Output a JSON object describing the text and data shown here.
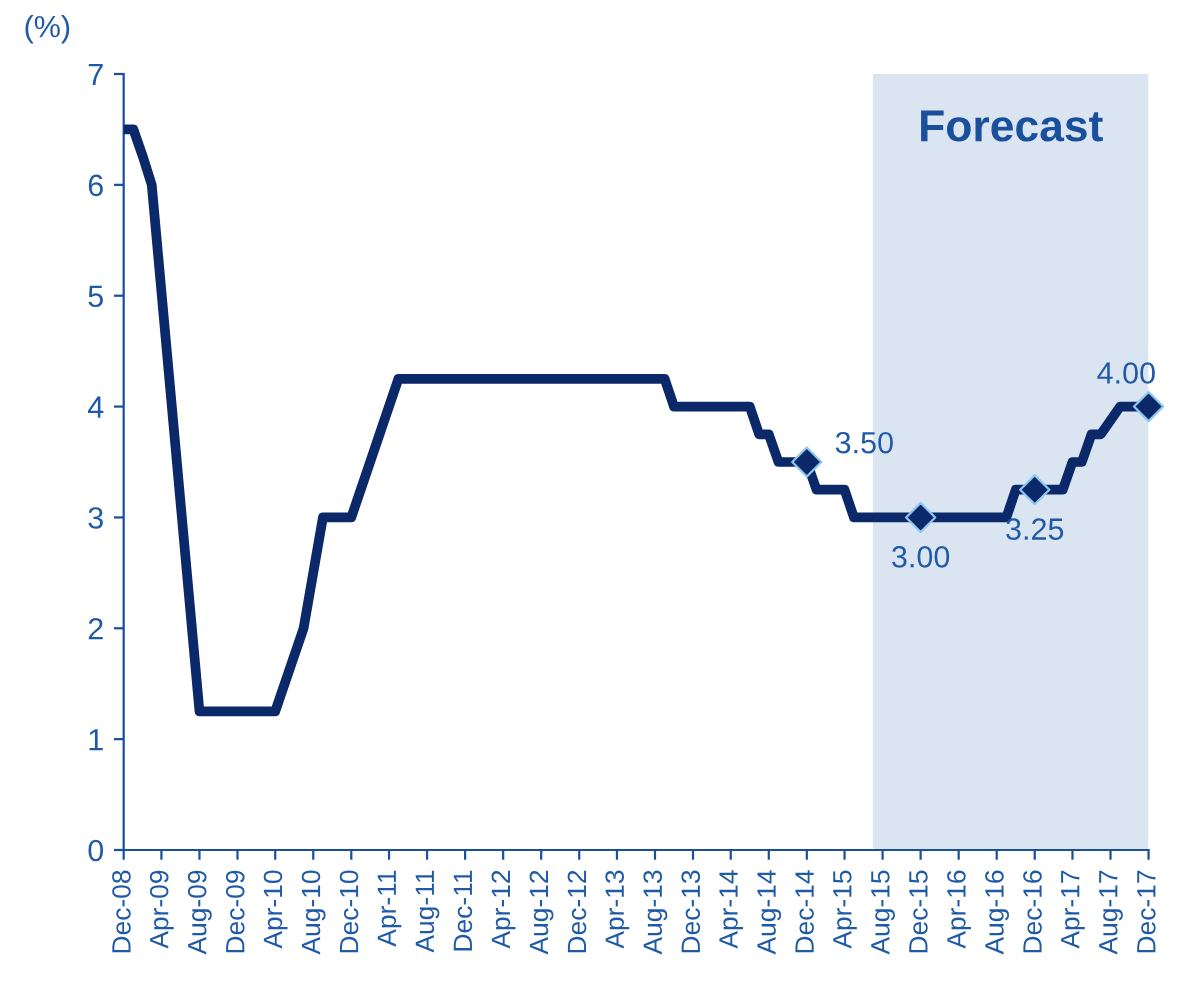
{
  "chart_data": {
    "type": "line",
    "ylabel": "(%)",
    "series": [
      {
        "color": "#0b2869",
        "x": [
          "2008-12",
          "2009-01",
          "2009-02",
          "2009-03",
          "2009-08",
          "2010-04",
          "2010-07",
          "2010-09",
          "2010-12",
          "2011-05",
          "2013-09",
          "2013-10",
          "2014-06",
          "2014-07",
          "2014-08",
          "2014-09",
          "2014-12",
          "2015-01",
          "2015-04",
          "2015-05",
          "2015-12",
          "2016-09",
          "2016-10",
          "2016-12",
          "2017-03",
          "2017-04",
          "2017-05",
          "2017-06",
          "2017-07",
          "2017-09",
          "2017-12"
        ],
        "values": [
          6.5,
          6.5,
          6.25,
          6.0,
          1.25,
          1.25,
          2.0,
          3.0,
          3.0,
          4.25,
          4.25,
          4.0,
          4.0,
          3.75,
          3.75,
          3.5,
          3.5,
          3.25,
          3.25,
          3.0,
          3.0,
          3.0,
          3.25,
          3.25,
          3.25,
          3.5,
          3.5,
          3.75,
          3.75,
          4.0,
          4.0
        ]
      },
      {
        "type": "scatter",
        "marker": "diamond",
        "color": "#0b2869",
        "x": [
          "2014-12",
          "2015-12",
          "2016-12",
          "2017-12"
        ],
        "values": [
          3.5,
          3.0,
          3.25,
          4.0
        ],
        "value_labels": [
          "3.50",
          "3.00",
          "3.25",
          "4.00"
        ]
      }
    ],
    "xlim": [
      "2008-12",
      "2017-12"
    ],
    "xticks": [
      {
        "value": "2008-12",
        "label": "Dec-08"
      },
      {
        "value": "2009-04",
        "label": "Apr-09"
      },
      {
        "value": "2009-08",
        "label": "Aug-09"
      },
      {
        "value": "2009-12",
        "label": "Dec-09"
      },
      {
        "value": "2010-04",
        "label": "Apr-10"
      },
      {
        "value": "2010-08",
        "label": "Aug-10"
      },
      {
        "value": "2010-12",
        "label": "Dec-10"
      },
      {
        "value": "2011-04",
        "label": "Apr-11"
      },
      {
        "value": "2011-08",
        "label": "Aug-11"
      },
      {
        "value": "2011-12",
        "label": "Dec-11"
      },
      {
        "value": "2012-04",
        "label": "Apr-12"
      },
      {
        "value": "2012-08",
        "label": "Aug-12"
      },
      {
        "value": "2012-12",
        "label": "Dec-12"
      },
      {
        "value": "2013-04",
        "label": "Apr-13"
      },
      {
        "value": "2013-08",
        "label": "Aug-13"
      },
      {
        "value": "2013-12",
        "label": "Dec-13"
      },
      {
        "value": "2014-04",
        "label": "Apr-14"
      },
      {
        "value": "2014-08",
        "label": "Aug-14"
      },
      {
        "value": "2014-12",
        "label": "Dec-14"
      },
      {
        "value": "2015-04",
        "label": "Apr-15"
      },
      {
        "value": "2015-08",
        "label": "Aug-15"
      },
      {
        "value": "2015-12",
        "label": "Dec-15"
      },
      {
        "value": "2016-04",
        "label": "Apr-16"
      },
      {
        "value": "2016-08",
        "label": "Aug-16"
      },
      {
        "value": "2016-12",
        "label": "Dec-16"
      },
      {
        "value": "2017-04",
        "label": "Apr-17"
      },
      {
        "value": "2017-08",
        "label": "Aug-17"
      },
      {
        "value": "2017-12",
        "label": "Dec-17"
      }
    ],
    "ylim": [
      0,
      7
    ],
    "yticks": [
      0,
      1,
      2,
      3,
      4,
      5,
      6,
      7
    ],
    "bands": [
      {
        "axis": "x",
        "from": "2015-07",
        "to": "2017-12",
        "label": "Forecast",
        "color": "#dbe5f1"
      }
    ],
    "grid": false,
    "legend": false
  }
}
